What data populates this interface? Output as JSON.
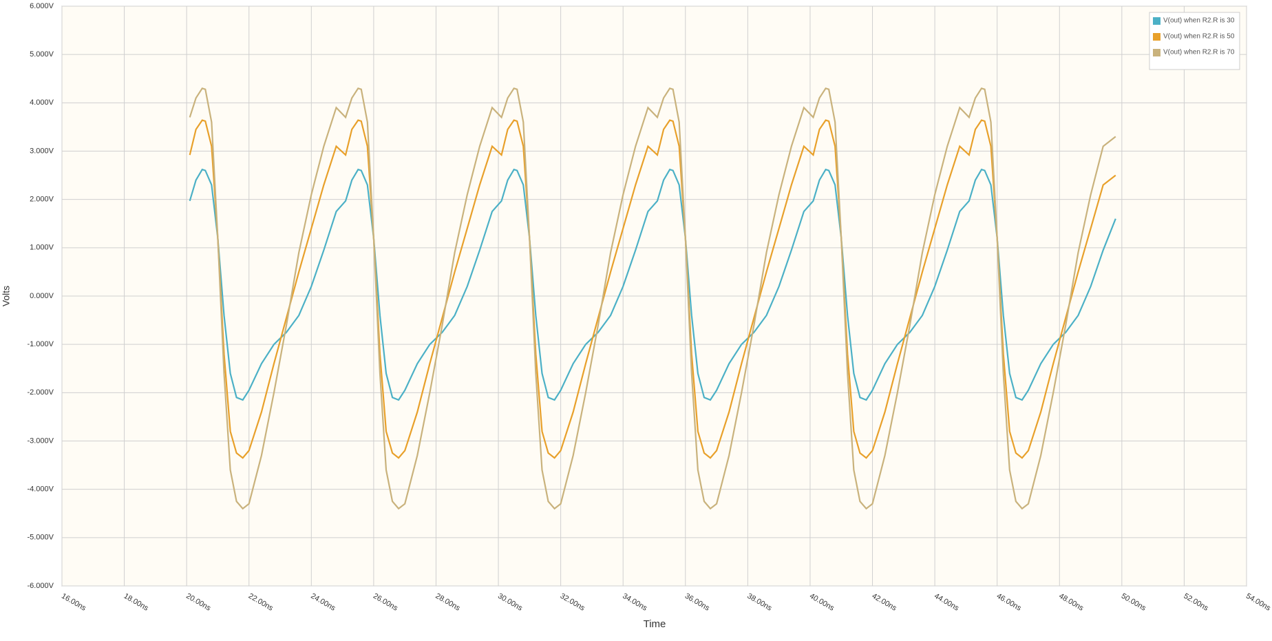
{
  "chart_data": {
    "type": "line",
    "x_label": "Time",
    "y_label": "Volts",
    "xlim": [
      16,
      54
    ],
    "xticks": [
      {
        "value": 16,
        "label": "16.00ns"
      },
      {
        "value": 18,
        "label": "18.00ns"
      },
      {
        "value": 20,
        "label": "20.00ns"
      },
      {
        "value": 22,
        "label": "22.00ns"
      },
      {
        "value": 24,
        "label": "24.00ns"
      },
      {
        "value": 26,
        "label": "26.00ns"
      },
      {
        "value": 28,
        "label": "28.00ns"
      },
      {
        "value": 30,
        "label": "30.00ns"
      },
      {
        "value": 32,
        "label": "32.00ns"
      },
      {
        "value": 34,
        "label": "34.00ns"
      },
      {
        "value": 36,
        "label": "36.00ns"
      },
      {
        "value": 38,
        "label": "38.00ns"
      },
      {
        "value": 40,
        "label": "40.00ns"
      },
      {
        "value": 42,
        "label": "42.00ns"
      },
      {
        "value": 44,
        "label": "44.00ns"
      },
      {
        "value": 46,
        "label": "46.00ns"
      },
      {
        "value": 48,
        "label": "48.00ns"
      },
      {
        "value": 50,
        "label": "50.00ns"
      },
      {
        "value": 52,
        "label": "52.00ns"
      },
      {
        "value": 54,
        "label": "54.00ns"
      }
    ],
    "ylim": [
      -6,
      6
    ],
    "yticks": [
      {
        "value": -6,
        "label": "-6.000V"
      },
      {
        "value": -5,
        "label": "-5.000V"
      },
      {
        "value": -4,
        "label": "-4.000V"
      },
      {
        "value": -3,
        "label": "-3.000V"
      },
      {
        "value": -2,
        "label": "-2.000V"
      },
      {
        "value": -1,
        "label": "-1.000V"
      },
      {
        "value": 0,
        "label": "0.000V"
      },
      {
        "value": 1,
        "label": "1.000V"
      },
      {
        "value": 2,
        "label": "2.000V"
      },
      {
        "value": 3,
        "label": "3.000V"
      },
      {
        "value": 4,
        "label": "4.000V"
      },
      {
        "value": 5,
        "label": "5.000V"
      },
      {
        "value": 6,
        "label": "6.000V"
      }
    ],
    "grid": true,
    "legend": "top-right",
    "x": [
      20.1,
      20.3,
      20.5,
      20.6,
      20.8,
      21,
      21.2,
      21.4,
      21.6,
      21.8,
      22,
      22.4,
      22.8,
      23.2,
      23.6,
      24,
      24.4,
      24.8,
      25.1,
      25.3,
      25.5,
      25.6,
      25.8,
      26,
      26.2,
      26.4,
      26.6,
      26.8,
      27,
      27.4,
      27.8,
      28.2,
      28.6,
      29,
      29.4,
      29.8,
      30.1,
      30.3,
      30.5,
      30.6,
      30.8,
      31,
      31.2,
      31.4,
      31.6,
      31.8,
      32,
      32.4,
      32.8,
      33.2,
      33.6,
      34,
      34.4,
      34.8,
      35.1,
      35.3,
      35.5,
      35.6,
      35.8,
      36,
      36.2,
      36.4,
      36.6,
      36.8,
      37,
      37.4,
      37.8,
      38.2,
      38.6,
      39,
      39.4,
      39.8,
      40.1,
      40.3,
      40.5,
      40.6,
      40.8,
      41,
      41.2,
      41.4,
      41.6,
      41.8,
      42,
      42.4,
      42.8,
      43.2,
      43.6,
      44,
      44.4,
      44.8,
      45.1,
      45.3,
      45.5,
      45.6,
      45.8,
      46,
      46.2,
      46.4,
      46.6,
      46.8,
      47,
      47.4,
      47.8,
      48.2,
      48.6,
      49,
      49.4,
      49.8
    ],
    "series": [
      {
        "name": "V(out) when R2.R is 30",
        "color": "#4bb0c6",
        "values": [
          1.97,
          2.4,
          2.62,
          2.6,
          2.3,
          1.2,
          -0.4,
          -1.6,
          -2.1,
          -2.15,
          -1.95,
          -1.4,
          -1.0,
          -0.75,
          -0.4,
          0.2,
          0.95,
          1.75,
          1.97,
          2.4,
          2.62,
          2.6,
          2.3,
          1.2,
          -0.4,
          -1.6,
          -2.1,
          -2.15,
          -1.95,
          -1.4,
          -1.0,
          -0.75,
          -0.4,
          0.2,
          0.95,
          1.75,
          1.97,
          2.4,
          2.62,
          2.6,
          2.3,
          1.2,
          -0.4,
          -1.6,
          -2.1,
          -2.15,
          -1.95,
          -1.4,
          -1.0,
          -0.75,
          -0.4,
          0.2,
          0.95,
          1.75,
          1.97,
          2.4,
          2.62,
          2.6,
          2.3,
          1.2,
          -0.4,
          -1.6,
          -2.1,
          -2.15,
          -1.95,
          -1.4,
          -1.0,
          -0.75,
          -0.4,
          0.2,
          0.95,
          1.75,
          1.97,
          2.4,
          2.62,
          2.6,
          2.3,
          1.2,
          -0.4,
          -1.6,
          -2.1,
          -2.15,
          -1.95,
          -1.4,
          -1.0,
          -0.75,
          -0.4,
          0.2,
          0.95,
          1.75,
          1.97,
          2.4,
          2.62,
          2.6,
          2.3,
          1.2,
          -0.4,
          -1.6,
          -2.1,
          -2.15,
          -1.95,
          -1.4,
          -1.0,
          -0.75,
          -0.4,
          0.2,
          0.95,
          1.6
        ]
      },
      {
        "name": "V(out) when R2.R is 50",
        "color": "#e8a02a",
        "values": [
          2.92,
          3.45,
          3.64,
          3.62,
          3.1,
          1.2,
          -1.2,
          -2.8,
          -3.25,
          -3.35,
          -3.2,
          -2.4,
          -1.4,
          -0.45,
          0.5,
          1.4,
          2.3,
          3.1,
          2.92,
          3.45,
          3.64,
          3.62,
          3.1,
          1.2,
          -1.2,
          -2.8,
          -3.25,
          -3.35,
          -3.2,
          -2.4,
          -1.4,
          -0.45,
          0.5,
          1.4,
          2.3,
          3.1,
          2.92,
          3.45,
          3.64,
          3.62,
          3.1,
          1.2,
          -1.2,
          -2.8,
          -3.25,
          -3.35,
          -3.2,
          -2.4,
          -1.4,
          -0.45,
          0.5,
          1.4,
          2.3,
          3.1,
          2.92,
          3.45,
          3.64,
          3.62,
          3.1,
          1.2,
          -1.2,
          -2.8,
          -3.25,
          -3.35,
          -3.2,
          -2.4,
          -1.4,
          -0.45,
          0.5,
          1.4,
          2.3,
          3.1,
          2.92,
          3.45,
          3.64,
          3.62,
          3.1,
          1.2,
          -1.2,
          -2.8,
          -3.25,
          -3.35,
          -3.2,
          -2.4,
          -1.4,
          -0.45,
          0.5,
          1.4,
          2.3,
          3.1,
          2.92,
          3.45,
          3.64,
          3.62,
          3.1,
          1.2,
          -1.2,
          -2.8,
          -3.25,
          -3.35,
          -3.2,
          -2.4,
          -1.4,
          -0.45,
          0.5,
          1.4,
          2.3,
          2.5
        ]
      },
      {
        "name": "V(out) when R2.R is 70",
        "color": "#c9b27c",
        "values": [
          3.7,
          4.1,
          4.3,
          4.28,
          3.6,
          1.2,
          -1.6,
          -3.6,
          -4.25,
          -4.4,
          -4.3,
          -3.3,
          -2.0,
          -0.6,
          0.9,
          2.1,
          3.1,
          3.9,
          3.7,
          4.1,
          4.3,
          4.28,
          3.6,
          1.2,
          -1.6,
          -3.6,
          -4.25,
          -4.4,
          -4.3,
          -3.3,
          -2.0,
          -0.6,
          0.9,
          2.1,
          3.1,
          3.9,
          3.7,
          4.1,
          4.3,
          4.28,
          3.6,
          1.2,
          -1.6,
          -3.6,
          -4.25,
          -4.4,
          -4.3,
          -3.3,
          -2.0,
          -0.6,
          0.9,
          2.1,
          3.1,
          3.9,
          3.7,
          4.1,
          4.3,
          4.28,
          3.6,
          1.2,
          -1.6,
          -3.6,
          -4.25,
          -4.4,
          -4.3,
          -3.3,
          -2.0,
          -0.6,
          0.9,
          2.1,
          3.1,
          3.9,
          3.7,
          4.1,
          4.3,
          4.28,
          3.6,
          1.2,
          -1.6,
          -3.6,
          -4.25,
          -4.4,
          -4.3,
          -3.3,
          -2.0,
          -0.6,
          0.9,
          2.1,
          3.1,
          3.9,
          3.7,
          4.1,
          4.3,
          4.28,
          3.6,
          1.2,
          -1.6,
          -3.6,
          -4.25,
          -4.4,
          -4.3,
          -3.3,
          -2.0,
          -0.6,
          0.9,
          2.1,
          3.1,
          3.3
        ]
      }
    ]
  }
}
